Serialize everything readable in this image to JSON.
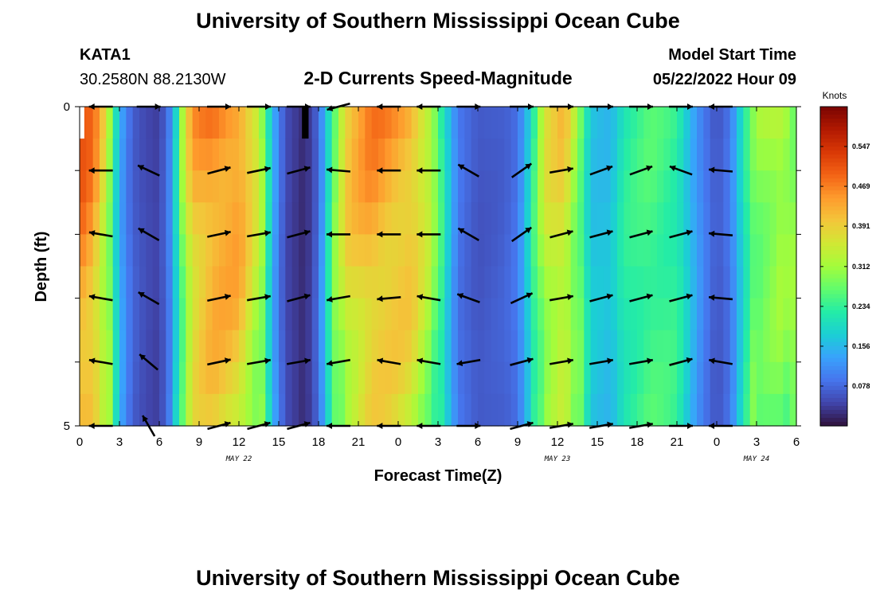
{
  "header": {
    "title": "University of Southern Mississippi Ocean Cube",
    "station": "KATA1",
    "coords": "30.2580N  88.2130W",
    "subtitle": "2-D Currents Speed-Magnitude",
    "model_label": "Model Start Time",
    "model_time": "05/22/2022 Hour 09"
  },
  "footer": {
    "title": "University of Southern Mississippi Ocean Cube"
  },
  "chart_data": {
    "type": "heatmap",
    "xlabel": "Forecast Time(Z)",
    "ylabel": "Depth (ft)",
    "x_range_hours": [
      0,
      54
    ],
    "x_ticks": [
      {
        "h": 0,
        "label": "0"
      },
      {
        "h": 3,
        "label": "3"
      },
      {
        "h": 6,
        "label": "6"
      },
      {
        "h": 9,
        "label": "9"
      },
      {
        "h": 12,
        "label": "12"
      },
      {
        "h": 15,
        "label": "15"
      },
      {
        "h": 18,
        "label": "18"
      },
      {
        "h": 21,
        "label": "21"
      },
      {
        "h": 24,
        "label": "0"
      },
      {
        "h": 27,
        "label": "3"
      },
      {
        "h": 30,
        "label": "6"
      },
      {
        "h": 33,
        "label": "9"
      },
      {
        "h": 36,
        "label": "12"
      },
      {
        "h": 39,
        "label": "15"
      },
      {
        "h": 42,
        "label": "18"
      },
      {
        "h": 45,
        "label": "21"
      },
      {
        "h": 48,
        "label": "0"
      },
      {
        "h": 51,
        "label": "3"
      },
      {
        "h": 54,
        "label": "6"
      }
    ],
    "date_labels": [
      {
        "h": 12,
        "label": "MAY 22"
      },
      {
        "h": 36,
        "label": "MAY 23"
      },
      {
        "h": 51,
        "label": "MAY 24"
      }
    ],
    "y_ticks": [
      {
        "depth": 0,
        "label": "0"
      },
      {
        "depth": 5,
        "label": "5"
      }
    ],
    "y_range_ft": [
      0,
      5
    ],
    "depth_levels": [
      0.25,
      0.75,
      1.25,
      1.75,
      2.25,
      2.75,
      3.25,
      3.75,
      4.25,
      4.75
    ],
    "colorbar": {
      "unit": "Knots",
      "range": [
        0.0,
        0.625
      ],
      "ticks": [
        0.547,
        0.469,
        0.391,
        0.312,
        0.234,
        0.156,
        0.078
      ],
      "colors": [
        "#30123b",
        "#4145ab",
        "#4675ed",
        "#39a2fc",
        "#1bcfd4",
        "#24eca6",
        "#61fc6c",
        "#a4fc3b",
        "#d1e834",
        "#f3c63a",
        "#fe9b2d",
        "#f36315",
        "#d93806",
        "#b11901",
        "#7a0402"
      ]
    },
    "speed_keyframes": [
      {
        "h": 0,
        "v": 0.5
      },
      {
        "h": 1,
        "v": 0.47
      },
      {
        "h": 2,
        "v": 0.35
      },
      {
        "h": 2.7,
        "v": 0.2
      },
      {
        "h": 3.3,
        "v": 0.12
      },
      {
        "h": 4,
        "v": 0.07
      },
      {
        "h": 5,
        "v": 0.05
      },
      {
        "h": 6,
        "v": 0.04
      },
      {
        "h": 7,
        "v": 0.12
      },
      {
        "h": 7.7,
        "v": 0.3
      },
      {
        "h": 8.5,
        "v": 0.43
      },
      {
        "h": 10,
        "v": 0.47
      },
      {
        "h": 12,
        "v": 0.46
      },
      {
        "h": 13.5,
        "v": 0.35
      },
      {
        "h": 14.5,
        "v": 0.15
      },
      {
        "h": 15.5,
        "v": 0.05
      },
      {
        "h": 17,
        "v": 0.02
      },
      {
        "h": 18,
        "v": 0.08
      },
      {
        "h": 19,
        "v": 0.25
      },
      {
        "h": 20,
        "v": 0.4
      },
      {
        "h": 22,
        "v": 0.46
      },
      {
        "h": 25,
        "v": 0.43
      },
      {
        "h": 26.5,
        "v": 0.34
      },
      {
        "h": 27.5,
        "v": 0.2
      },
      {
        "h": 28.5,
        "v": 0.09
      },
      {
        "h": 30,
        "v": 0.06
      },
      {
        "h": 32,
        "v": 0.07
      },
      {
        "h": 33,
        "v": 0.09
      },
      {
        "h": 34,
        "v": 0.2
      },
      {
        "h": 35,
        "v": 0.36
      },
      {
        "h": 36.5,
        "v": 0.4
      },
      {
        "h": 37.5,
        "v": 0.3
      },
      {
        "h": 38.5,
        "v": 0.17
      },
      {
        "h": 40,
        "v": 0.16
      },
      {
        "h": 41,
        "v": 0.22
      },
      {
        "h": 43,
        "v": 0.25
      },
      {
        "h": 45,
        "v": 0.23
      },
      {
        "h": 46,
        "v": 0.16
      },
      {
        "h": 47,
        "v": 0.1
      },
      {
        "h": 48,
        "v": 0.06
      },
      {
        "h": 49,
        "v": 0.09
      },
      {
        "h": 50,
        "v": 0.2
      },
      {
        "h": 51,
        "v": 0.3
      },
      {
        "h": 53,
        "v": 0.34
      },
      {
        "h": 54,
        "v": 0.28
      }
    ],
    "missing_cells": [
      {
        "h_start": 16.75,
        "h_end": 17.25,
        "depth_start": 0.0,
        "depth_end": 0.5
      },
      {
        "h_start": 0.0,
        "h_end": 0.35,
        "depth_start": 0.0,
        "depth_end": 0.5
      }
    ],
    "vector_rows_depth": [
      0,
      1,
      2,
      3,
      4,
      5
    ],
    "vectors": [
      {
        "h": 1.6,
        "angles": [
          180,
          180,
          170,
          170,
          170,
          180
        ],
        "len": 30
      },
      {
        "h": 5.2,
        "angles": [
          0,
          155,
          150,
          150,
          140,
          120
        ],
        "len": 30
      },
      {
        "h": 10.5,
        "angles": [
          0,
          15,
          12,
          12,
          12,
          15
        ],
        "len": 30
      },
      {
        "h": 13.5,
        "angles": [
          0,
          12,
          10,
          10,
          10,
          15
        ],
        "len": 30
      },
      {
        "h": 16.5,
        "angles": [
          0,
          15,
          15,
          15,
          10,
          15
        ],
        "len": 30
      },
      {
        "h": 19.5,
        "angles": [
          195,
          175,
          180,
          190,
          190,
          180
        ],
        "len": 30
      },
      {
        "h": 23.3,
        "angles": [
          180,
          180,
          180,
          185,
          170,
          180
        ],
        "len": 30
      },
      {
        "h": 26.3,
        "angles": [
          180,
          180,
          180,
          170,
          170,
          180
        ],
        "len": 30
      },
      {
        "h": 29.3,
        "angles": [
          0,
          150,
          150,
          160,
          190,
          0
        ],
        "len": 30
      },
      {
        "h": 33.3,
        "angles": [
          0,
          35,
          35,
          25,
          15,
          15
        ],
        "len": 30
      },
      {
        "h": 36.3,
        "angles": [
          0,
          10,
          15,
          10,
          10,
          10
        ],
        "len": 30
      },
      {
        "h": 39.3,
        "angles": [
          0,
          20,
          15,
          15,
          10,
          10
        ],
        "len": 30
      },
      {
        "h": 42.3,
        "angles": [
          0,
          20,
          15,
          15,
          10,
          10
        ],
        "len": 30
      },
      {
        "h": 45.3,
        "angles": [
          0,
          160,
          15,
          15,
          15,
          0
        ],
        "len": 30
      },
      {
        "h": 48.3,
        "angles": [
          180,
          175,
          175,
          175,
          170,
          180
        ],
        "len": 30
      }
    ]
  }
}
